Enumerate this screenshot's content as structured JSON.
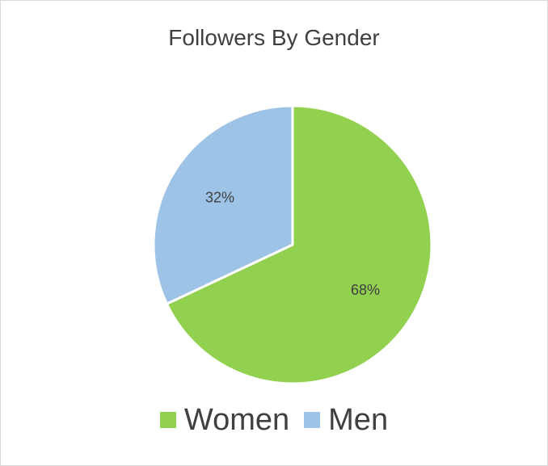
{
  "chart_data": {
    "type": "pie",
    "title": "Followers By Gender",
    "categories": [
      "Women",
      "Men"
    ],
    "values": [
      68,
      32
    ],
    "data_labels": [
      "68%",
      "32%"
    ],
    "colors": [
      "#92d050",
      "#9dc3e6"
    ],
    "legend_position": "bottom"
  }
}
